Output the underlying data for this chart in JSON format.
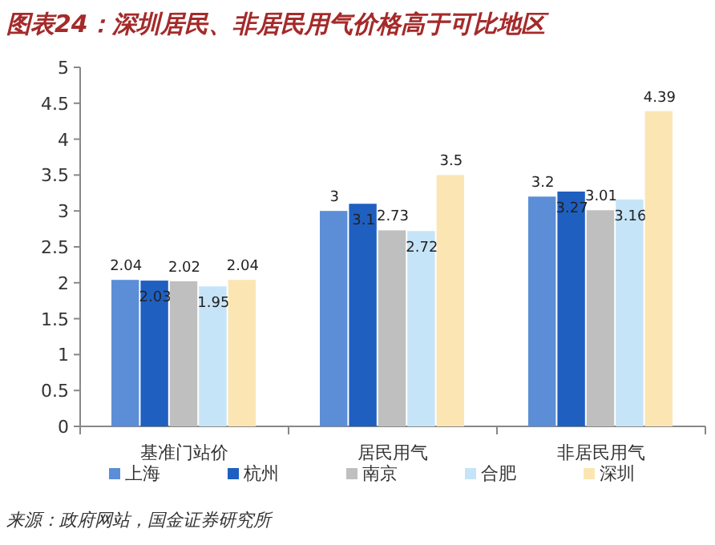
{
  "chart_data": {
    "type": "bar",
    "title": "图表24：深圳居民、非居民用气价格高于可比地区",
    "categories": [
      "基准门站价",
      "居民用气",
      "非居民用气"
    ],
    "series": [
      {
        "name": "上海",
        "color": "#5b8ed6",
        "values": [
          2.04,
          3,
          3.2
        ]
      },
      {
        "name": "杭州",
        "color": "#1f5fc0",
        "values": [
          2.03,
          3.1,
          3.27
        ]
      },
      {
        "name": "南京",
        "color": "#bfbfbf",
        "values": [
          2.02,
          2.73,
          3.01
        ]
      },
      {
        "name": "合肥",
        "color": "#c6e4f7",
        "values": [
          1.95,
          2.72,
          3.16
        ]
      },
      {
        "name": "深圳",
        "color": "#fbe6b3",
        "values": [
          2.04,
          3.5,
          4.39
        ]
      }
    ],
    "ylim": [
      0,
      5
    ],
    "yticks": [
      0,
      0.5,
      1,
      1.5,
      2,
      2.5,
      3,
      3.5,
      4,
      4.5,
      5
    ],
    "data_labels": true,
    "legend": "bottom",
    "grid": false,
    "annotations": [
      "来源：政府网站，国金证券研究所"
    ]
  }
}
